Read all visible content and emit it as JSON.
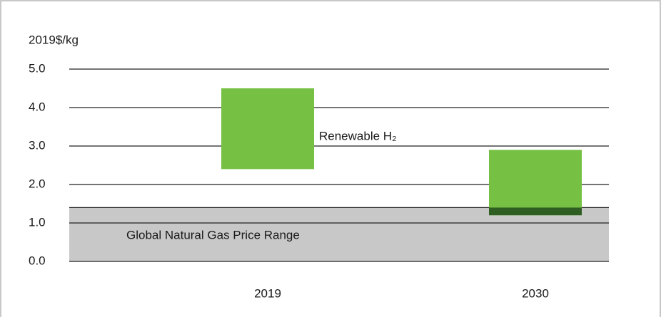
{
  "chart_data": {
    "type": "range-bar",
    "y_label": "2019$/kg",
    "categories": [
      "2019",
      "2030"
    ],
    "low": [
      2.4,
      1.2
    ],
    "high": [
      4.5,
      2.9
    ],
    "color": "#76c043",
    "overlap_color": "#2f5e23",
    "band": {
      "label": "Global Natural Gas Price Range",
      "low": 0,
      "high": 1.4,
      "color": "#c8c8c9"
    },
    "annotation": "Renewable H₂",
    "ylim": [
      0,
      5
    ],
    "yticks": [
      {
        "value": 0,
        "label": "0.0"
      },
      {
        "value": 1,
        "label": "1.0"
      },
      {
        "value": 2,
        "label": "2.0"
      },
      {
        "value": 3,
        "label": "3.0"
      },
      {
        "value": 4,
        "label": "4.0"
      },
      {
        "value": 5,
        "label": "5.0"
      }
    ],
    "grid": true
  }
}
